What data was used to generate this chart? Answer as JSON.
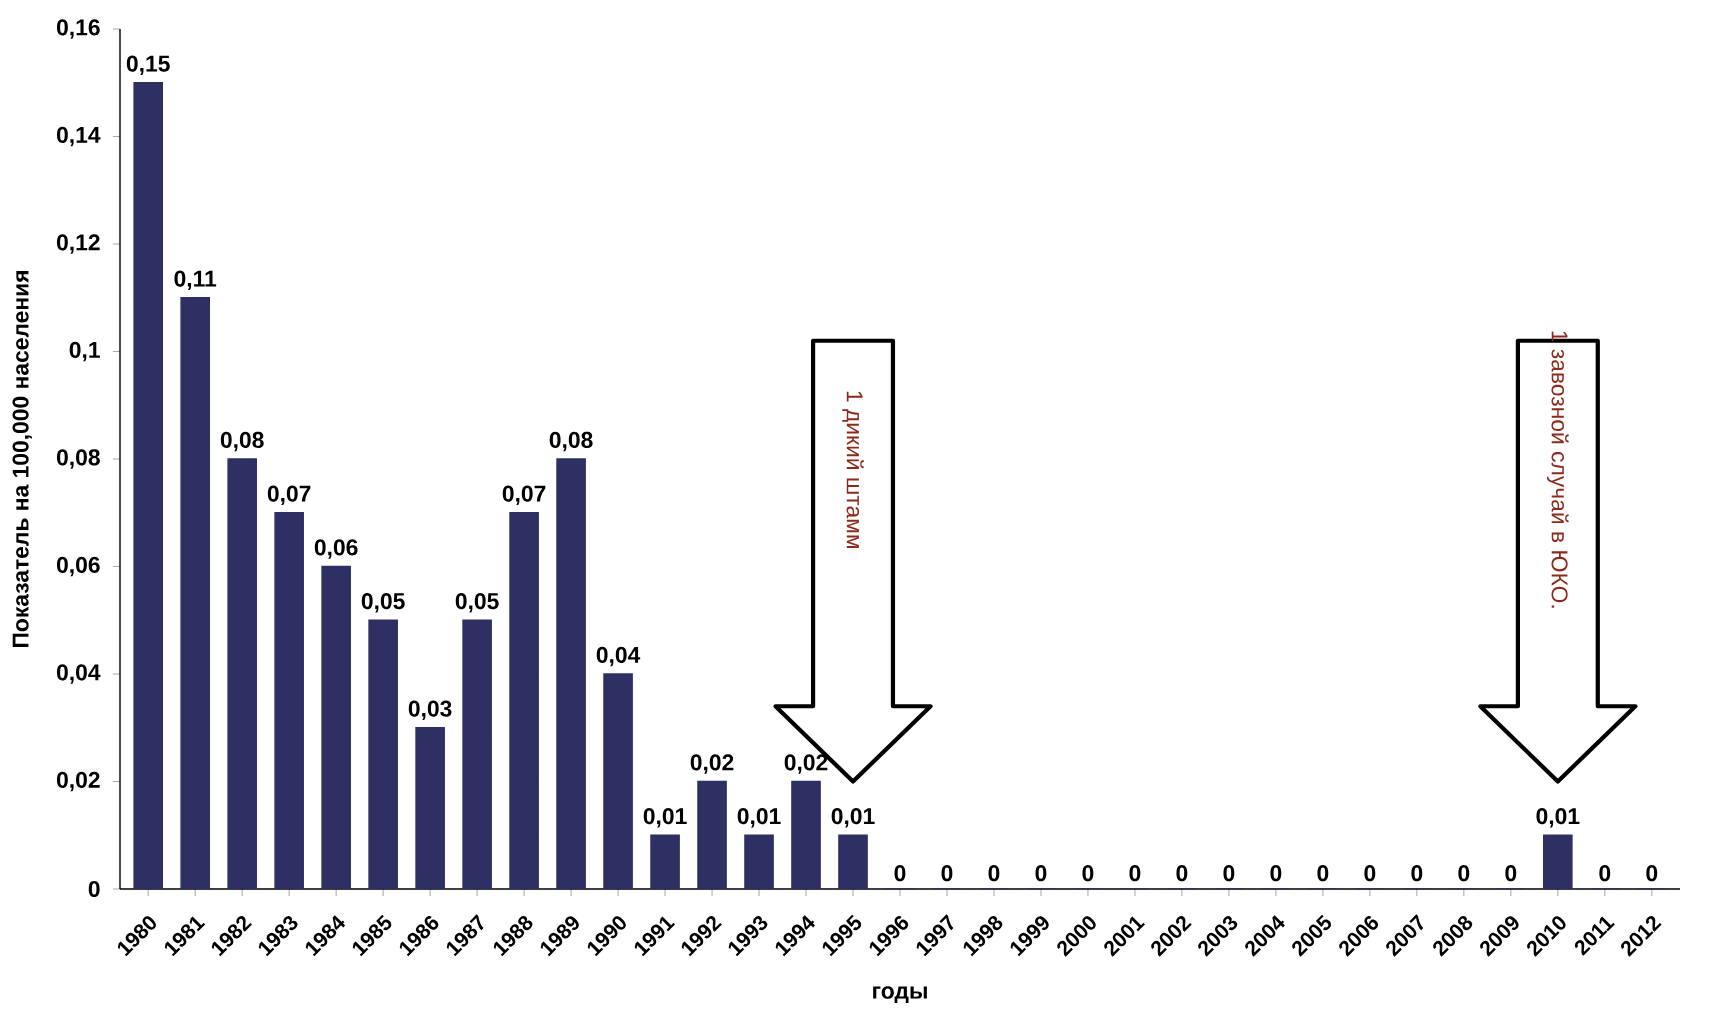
{
  "chart_data": {
    "type": "bar",
    "xlabel": "годы",
    "ylabel": "Показатель на 100,000 населения",
    "categories": [
      "1980",
      "1981",
      "1982",
      "1983",
      "1984",
      "1985",
      "1986",
      "1987",
      "1988",
      "1989",
      "1990",
      "1991",
      "1992",
      "1993",
      "1994",
      "1995",
      "1996",
      "1997",
      "1998",
      "1999",
      "2000",
      "2001",
      "2002",
      "2003",
      "2004",
      "2005",
      "2006",
      "2007",
      "2008",
      "2009",
      "2010",
      "2011",
      "2012"
    ],
    "values": [
      0.15,
      0.11,
      0.08,
      0.07,
      0.06,
      0.05,
      0.03,
      0.05,
      0.07,
      0.08,
      0.04,
      0.01,
      0.02,
      0.01,
      0.02,
      0.01,
      0,
      0,
      0,
      0,
      0,
      0,
      0,
      0,
      0,
      0,
      0,
      0,
      0,
      0,
      0.01,
      0,
      0
    ],
    "value_labels": [
      "0,15",
      "0,11",
      "0,08",
      "0,07",
      "0,06",
      "0,05",
      "0,03",
      "0,05",
      "0,07",
      "0,08",
      "0,04",
      "0,01",
      "0,02",
      "0,01",
      "0,02",
      "0,01",
      "0",
      "0",
      "0",
      "0",
      "0",
      "0",
      "0",
      "0",
      "0",
      "0",
      "0",
      "0",
      "0",
      "0",
      "0,01",
      "0",
      "0"
    ],
    "color": "#2e2f63",
    "ylim": [
      0,
      0.16
    ],
    "yticks": [
      0,
      {
        "value": 0.02,
        "label": "0,02"
      },
      {
        "value": 0.04,
        "label": "0,04"
      },
      {
        "value": 0.06,
        "label": "0,06"
      },
      {
        "value": 0.08,
        "label": "0,08"
      },
      {
        "value": 0.1,
        "label": "0,1"
      },
      {
        "value": 0.12,
        "label": "0,12"
      },
      {
        "value": 0.14,
        "label": "0,14"
      },
      {
        "value": 0.16,
        "label": "0,16"
      }
    ],
    "grid": false,
    "annotations": [
      "1 дикий штамм",
      "1 завозной случай в ЮКО."
    ]
  }
}
